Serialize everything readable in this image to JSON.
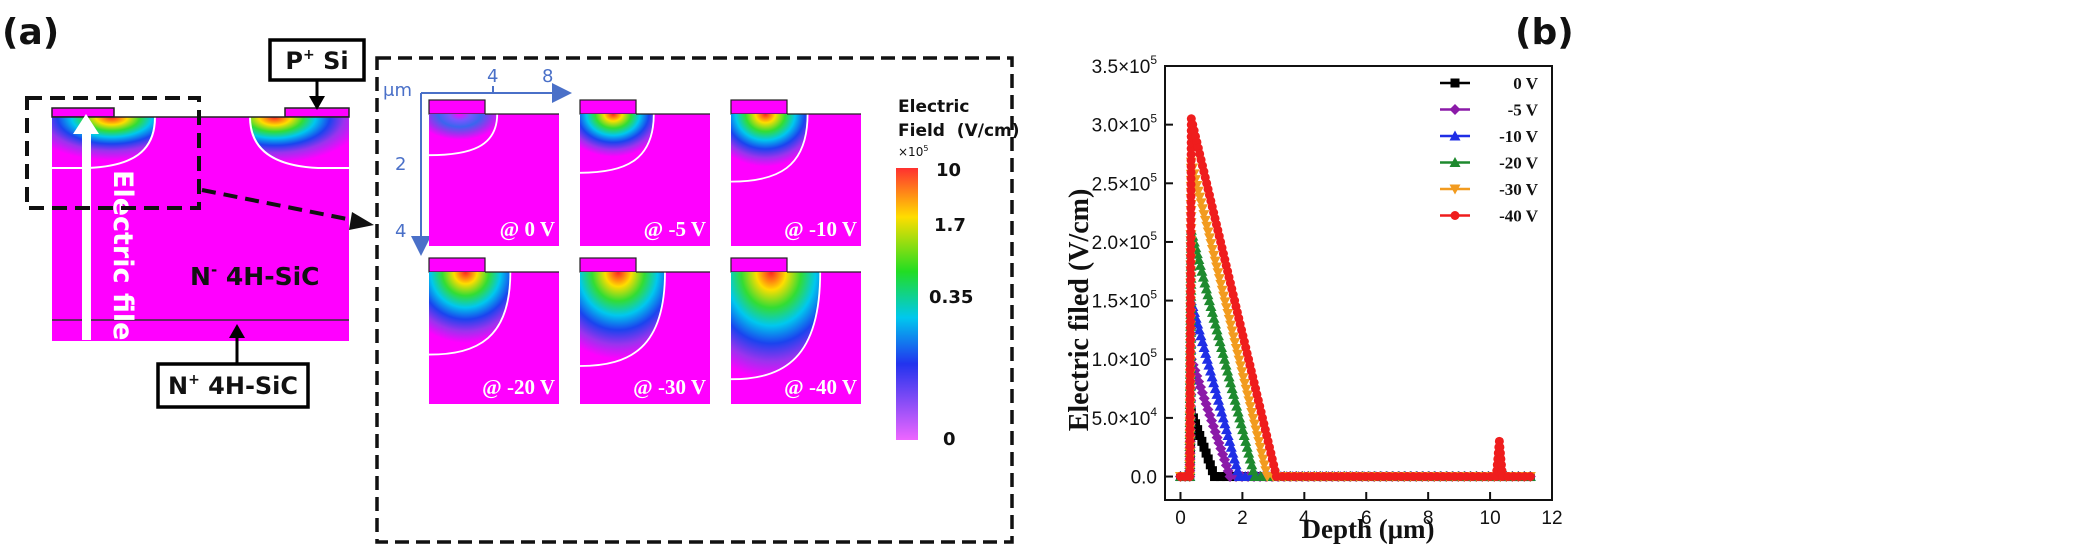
{
  "panel_a": {
    "label": "(a)",
    "p_si_label": {
      "main": "P",
      "sup": "+",
      "rest": " Si"
    },
    "n_minus_label": {
      "main": "N",
      "sup": "-",
      "rest": " 4H-SiC"
    },
    "n_plus_label": {
      "main": "N",
      "sup": "+",
      "rest": " 4H-SiC"
    },
    "arrow_label": "Electric filed",
    "zoom": {
      "unit": "μm",
      "x_ticks": [
        "4",
        "8"
      ],
      "y_ticks": [
        "2",
        "4"
      ],
      "subplots": [
        "@ 0 V",
        "@ -5 V",
        "@ -10 V",
        "@ -20 V",
        "@ -30 V",
        "@ -40 V"
      ]
    },
    "colorbar": {
      "title_line1": "Electric",
      "title_line2": "Field  (V/cm)",
      "multiplier": "×10",
      "multiplier_exp": "5",
      "ticks": [
        "10",
        "1.7",
        "0.35",
        "0"
      ]
    }
  },
  "panel_b": {
    "label": "(b)",
    "ylabel": "Electric filed (V/cm)",
    "xlabel": "Depth (μm)",
    "ytick_labels": [
      "0.0",
      "5.0×10",
      "1.0×10",
      "1.5×10",
      "2.0×10",
      "2.5×10",
      "3.0×10",
      "3.5×10"
    ],
    "ytick_exps": [
      "",
      "4",
      "5",
      "5",
      "5",
      "5",
      "5",
      "5"
    ]
  },
  "chart_data": {
    "type": "line",
    "xlabel": "Depth (μm)",
    "ylabel": "Electric filed (V/cm)",
    "xlim": [
      -0.5,
      12
    ],
    "ylim": [
      -20000,
      350000
    ],
    "xticks": [
      0,
      2,
      4,
      6,
      8,
      10,
      12
    ],
    "yticks": [
      0,
      50000,
      100000,
      150000,
      200000,
      250000,
      300000,
      350000
    ],
    "legend_position": "top-right",
    "series": [
      {
        "name": "0 V",
        "color": "#000000",
        "marker": "square",
        "x": [
          0,
          0.3,
          0.35,
          1.1,
          11.3
        ],
        "y": [
          0,
          0,
          55000,
          0,
          0
        ]
      },
      {
        "name": "-5 V",
        "color": "#8b1aa8",
        "marker": "diamond",
        "x": [
          0,
          0.3,
          0.35,
          1.6,
          11.3
        ],
        "y": [
          0,
          0,
          100000,
          0,
          0
        ]
      },
      {
        "name": "-10 V",
        "color": "#1f2ee6",
        "marker": "triangle-up",
        "x": [
          0,
          0.3,
          0.35,
          1.9,
          11.3
        ],
        "y": [
          0,
          0,
          150000,
          0,
          0
        ]
      },
      {
        "name": "-20 V",
        "color": "#1e8a2e",
        "marker": "triangle-up",
        "x": [
          0,
          0.3,
          0.35,
          2.4,
          11.3
        ],
        "y": [
          0,
          0,
          210000,
          0,
          0
        ]
      },
      {
        "name": "-30 V",
        "color": "#f29b1f",
        "marker": "triangle-down",
        "x": [
          0,
          0.3,
          0.35,
          2.8,
          11.3
        ],
        "y": [
          0,
          0,
          268000,
          0,
          0
        ]
      },
      {
        "name": "-40 V",
        "color": "#ef1d1d",
        "marker": "circle",
        "x": [
          0,
          0.3,
          0.35,
          3.1,
          10.2,
          10.3,
          10.4,
          11.3
        ],
        "y": [
          0,
          0,
          305000,
          0,
          0,
          30000,
          0,
          0
        ]
      }
    ]
  }
}
